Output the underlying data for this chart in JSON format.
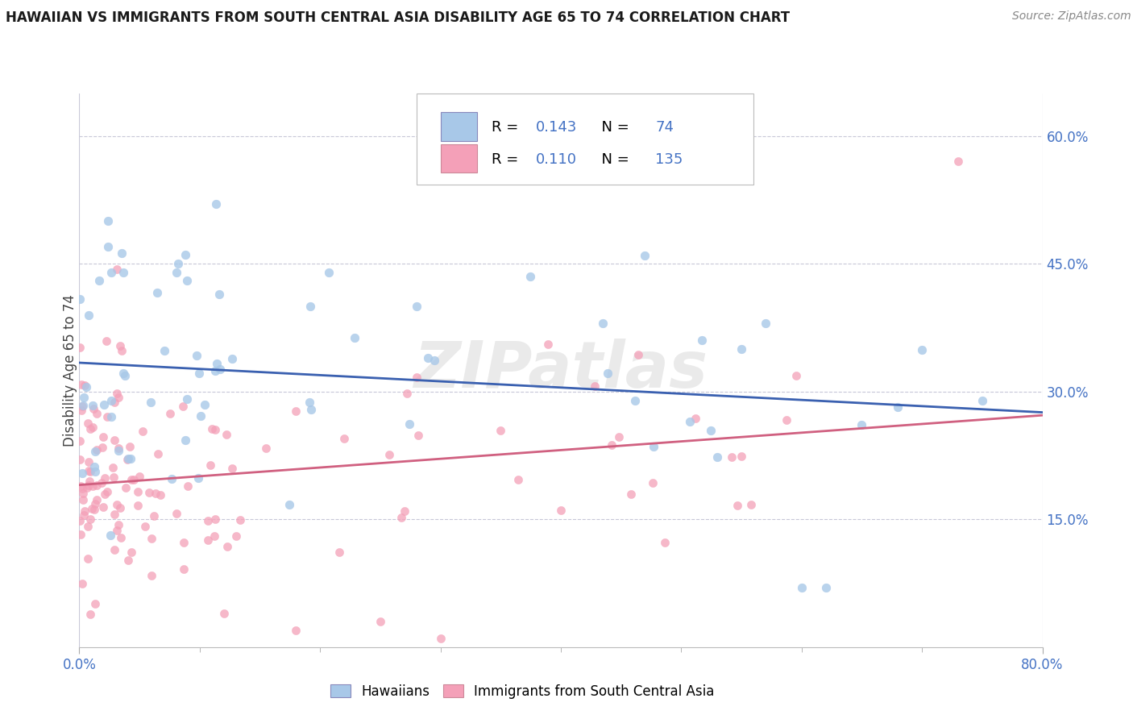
{
  "title": "HAWAIIAN VS IMMIGRANTS FROM SOUTH CENTRAL ASIA DISABILITY AGE 65 TO 74 CORRELATION CHART",
  "source": "Source: ZipAtlas.com",
  "ylabel": "Disability Age 65 to 74",
  "x_min": 0.0,
  "x_max": 0.8,
  "y_min": 0.0,
  "y_max": 0.65,
  "hawaiians_R": 0.143,
  "hawaiians_N": 74,
  "immigrants_R": 0.11,
  "immigrants_N": 135,
  "hawaiians_color": "#a8c8e8",
  "immigrants_color": "#f4a0b8",
  "hawaiians_trend_color": "#3a60b0",
  "immigrants_trend_color": "#d06080",
  "legend_label_hawaiians": "Hawaiians",
  "legend_label_immigrants": "Immigrants from South Central Asia",
  "watermark": "ZIPatlas",
  "background_color": "#ffffff",
  "grid_color": "#c8c8d8",
  "tick_color": "#4472c4",
  "title_color": "#1a1a1a",
  "source_color": "#888888",
  "ylabel_color": "#444444"
}
